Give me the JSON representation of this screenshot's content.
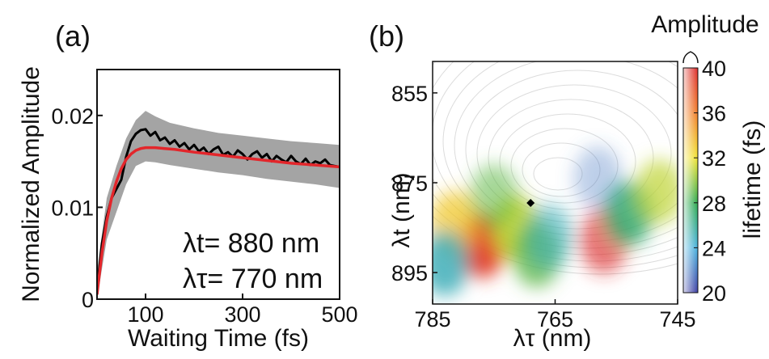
{
  "chart_data": [
    {
      "panel": "(a)",
      "type": "line",
      "xlabel": "Waiting Time (fs)",
      "ylabel": "Normalized Amplitude",
      "xlim": [
        0,
        500
      ],
      "ylim": [
        0,
        0.025
      ],
      "x_ticks": [
        "100",
        "300",
        "500"
      ],
      "y_ticks": [
        "0",
        "0.01",
        "0.02"
      ],
      "annotations": [
        "λt= 880 nm",
        "λτ= 770 nm"
      ],
      "series": [
        {
          "role": "data",
          "color": "#000000",
          "x": [
            0,
            10,
            20,
            30,
            40,
            50,
            60,
            70,
            80,
            90,
            100,
            110,
            120,
            130,
            140,
            150,
            160,
            170,
            180,
            190,
            200,
            210,
            220,
            230,
            240,
            250,
            260,
            270,
            280,
            290,
            300,
            310,
            320,
            330,
            340,
            350,
            360,
            370,
            380,
            390,
            400,
            410,
            420,
            430,
            440,
            450,
            460,
            470,
            480,
            490,
            500
          ],
          "y": [
            0.001,
            0.006,
            0.009,
            0.011,
            0.012,
            0.013,
            0.0155,
            0.0172,
            0.018,
            0.0184,
            0.0185,
            0.0178,
            0.0182,
            0.0173,
            0.0176,
            0.0169,
            0.0173,
            0.0166,
            0.017,
            0.0163,
            0.0168,
            0.0161,
            0.0165,
            0.0158,
            0.0163,
            0.0166,
            0.0157,
            0.016,
            0.0155,
            0.0162,
            0.0158,
            0.0152,
            0.0158,
            0.0161,
            0.0154,
            0.0158,
            0.015,
            0.0156,
            0.0152,
            0.0149,
            0.0156,
            0.015,
            0.0147,
            0.0153,
            0.0146,
            0.015,
            0.0148,
            0.0152,
            0.0146,
            0.0145,
            0.0144
          ]
        },
        {
          "role": "fit",
          "color": "#e3262b",
          "x": [
            0,
            10,
            20,
            30,
            40,
            50,
            60,
            70,
            80,
            90,
            100,
            120,
            140,
            160,
            200,
            250,
            300,
            350,
            400,
            450,
            500
          ],
          "y": [
            0.0005,
            0.005,
            0.0085,
            0.011,
            0.0128,
            0.0142,
            0.0152,
            0.0158,
            0.0162,
            0.0164,
            0.0165,
            0.0165,
            0.0164,
            0.0163,
            0.016,
            0.0157,
            0.0154,
            0.0151,
            0.0148,
            0.0146,
            0.0144
          ]
        }
      ],
      "band": {
        "color": "#9a9a9a",
        "x": [
          0,
          20,
          40,
          60,
          80,
          100,
          120,
          150,
          200,
          250,
          300,
          350,
          400,
          450,
          500
        ],
        "upper": [
          0.003,
          0.011,
          0.0145,
          0.0175,
          0.0195,
          0.0205,
          0.0199,
          0.0192,
          0.0186,
          0.0181,
          0.0178,
          0.0175,
          0.0172,
          0.017,
          0.0168
        ],
        "lower": [
          0,
          0.0065,
          0.0095,
          0.0125,
          0.0145,
          0.015,
          0.0149,
          0.0146,
          0.0142,
          0.0138,
          0.0135,
          0.0131,
          0.0128,
          0.0125,
          0.0121
        ]
      }
    },
    {
      "panel": "(b)",
      "type": "heatmap",
      "xlabel": "λτ (nm)",
      "ylabel": "λt (nm)",
      "xlim": [
        785,
        745
      ],
      "ylim": [
        848,
        902
      ],
      "x_ticks": [
        "785",
        "765",
        "745"
      ],
      "y_ticks": [
        "855",
        "875",
        "895"
      ],
      "colorbar": {
        "label": "lifetime (fs)",
        "top_label": "Amplitude",
        "range": [
          20,
          40
        ],
        "ticks": [
          "40",
          "36",
          "32",
          "28",
          "24",
          "20"
        ]
      },
      "marker": {
        "x": 769,
        "y": 879.5,
        "shape": "diamond"
      },
      "regions": [
        {
          "x": 777,
          "y": 889,
          "lifetime": 39,
          "amplitude": 0.95
        },
        {
          "x": 781.5,
          "y": 884,
          "lifetime": 33,
          "amplitude": 0.75
        },
        {
          "x": 771.5,
          "y": 885,
          "lifetime": 31,
          "amplitude": 0.9
        },
        {
          "x": 783,
          "y": 893,
          "lifetime": 25,
          "amplitude": 0.85
        },
        {
          "x": 768,
          "y": 891,
          "lifetime": 29,
          "amplitude": 0.8
        },
        {
          "x": 766,
          "y": 887,
          "lifetime": 25,
          "amplitude": 0.6
        },
        {
          "x": 757,
          "y": 888,
          "lifetime": 40,
          "amplitude": 0.65
        },
        {
          "x": 753,
          "y": 882,
          "lifetime": 27,
          "amplitude": 0.85
        },
        {
          "x": 748,
          "y": 877,
          "lifetime": 31,
          "amplitude": 0.7
        },
        {
          "x": 758,
          "y": 874,
          "lifetime": 22,
          "amplitude": 0.35
        },
        {
          "x": 775,
          "y": 878,
          "lifetime": 29,
          "amplitude": 0.55
        }
      ]
    }
  ]
}
